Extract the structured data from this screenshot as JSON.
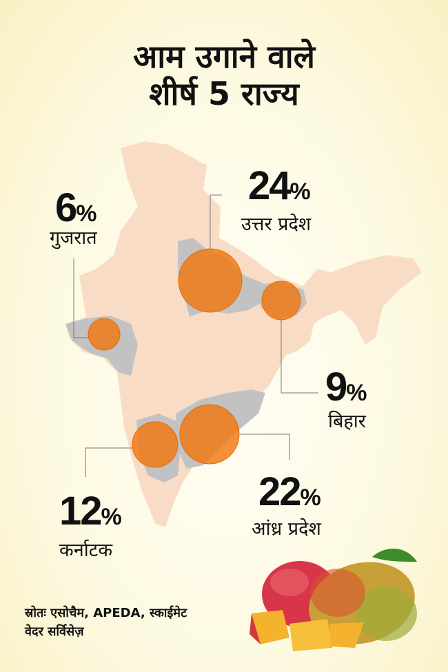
{
  "title": {
    "line1": "आम उगाने वाले",
    "line2": "शीर्ष 5 राज्य"
  },
  "chart_data": {
    "type": "map-bubble",
    "title": "आम उगाने वाले शीर्ष 5 राज्य",
    "categories": [
      "उत्तर प्रदेश",
      "आंध्र प्रदेश",
      "कर्नाटक",
      "बिहार",
      "गुजरात"
    ],
    "values": [
      24,
      22,
      12,
      9,
      6
    ],
    "unit": "%"
  },
  "states": [
    {
      "id": "up",
      "name": "उत्तर प्रदेश",
      "value": "24",
      "unit": "%"
    },
    {
      "id": "andhra",
      "name": "आंध्र प्रदेश",
      "value": "22",
      "unit": "%"
    },
    {
      "id": "karnataka",
      "name": "कर्नाटक",
      "value": "12",
      "unit": "%"
    },
    {
      "id": "bihar",
      "name": "बिहार",
      "value": "9",
      "unit": "%"
    },
    {
      "id": "gujarat",
      "name": "गुजरात",
      "value": "6",
      "unit": "%"
    }
  ],
  "source": {
    "line1": "स्रोतः एसोचैम, APEDA, स्काईमेट",
    "line2": "वेदर सर्विसेज़"
  },
  "colors": {
    "map": "#f9dcc5",
    "highlight": "#c2c2c2",
    "bubble": "#f07810"
  }
}
